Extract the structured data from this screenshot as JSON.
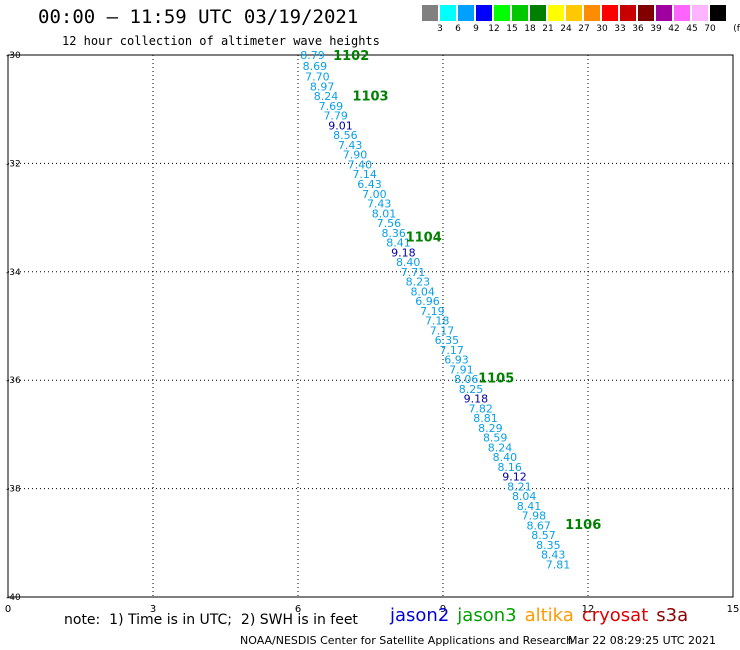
{
  "header": {
    "title": "00:00 – 11:59 UTC 03/19/2021",
    "subtitle": "12 hour collection of altimeter wave heights"
  },
  "legend": {
    "unit": "(ft)",
    "swatches": [
      {
        "color": "#808080",
        "label": "3"
      },
      {
        "color": "#00ffff",
        "label": "6"
      },
      {
        "color": "#00a0ff",
        "label": "9"
      },
      {
        "color": "#0000ff",
        "label": "12"
      },
      {
        "color": "#00ff00",
        "label": "15"
      },
      {
        "color": "#00c800",
        "label": "18"
      },
      {
        "color": "#008000",
        "label": "21"
      },
      {
        "color": "#ffff00",
        "label": "24"
      },
      {
        "color": "#ffc800",
        "label": "27"
      },
      {
        "color": "#ff8c00",
        "label": "30"
      },
      {
        "color": "#ff0000",
        "label": "33"
      },
      {
        "color": "#c80000",
        "label": "36"
      },
      {
        "color": "#800000",
        "label": "39"
      },
      {
        "color": "#a000a0",
        "label": "42"
      },
      {
        "color": "#ff64ff",
        "label": "45"
      },
      {
        "color": "#ffb4ff",
        "label": "70"
      },
      {
        "color": "#000000",
        "label": ""
      }
    ]
  },
  "map": {
    "x_ticks": [
      0,
      3,
      6,
      9,
      12,
      15
    ],
    "x_tick_labels": [
      "0",
      "3",
      "6",
      "9",
      "12",
      "15"
    ],
    "y_ticks": [
      -30,
      -32,
      -34,
      -36,
      -38,
      -40
    ],
    "y_tick_labels": [
      "-30",
      "-32",
      "-34",
      "-36",
      "-38",
      "-40"
    ],
    "xlim": [
      0,
      15
    ],
    "ylim": [
      -40,
      -30
    ],
    "grid": true,
    "colors": {
      "jason3_cyan": "#0aa0e8",
      "jason3_high": "#0000a0",
      "hour_label": "#008000"
    }
  },
  "chart_data": {
    "type": "scatter",
    "title": "12 hour collection of altimeter wave heights",
    "x_label": "",
    "y_label": "",
    "xlim": [
      0,
      15
    ],
    "ylim": [
      -40,
      -30
    ],
    "points": [
      {
        "lon": 6.3,
        "lat": -30.0,
        "value": "8.79"
      },
      {
        "lon": 6.35,
        "lat": -30.2,
        "value": "8.69"
      },
      {
        "lon": 6.4,
        "lat": -30.4,
        "value": "7.70"
      },
      {
        "lon": 6.5,
        "lat": -30.58,
        "value": "8.97"
      },
      {
        "lon": 6.58,
        "lat": -30.76,
        "value": "8.24"
      },
      {
        "lon": 6.68,
        "lat": -30.94,
        "value": "7.69"
      },
      {
        "lon": 6.78,
        "lat": -31.12,
        "value": "7.79"
      },
      {
        "lon": 6.88,
        "lat": -31.3,
        "value": "9.01"
      },
      {
        "lon": 6.98,
        "lat": -31.48,
        "value": "8.56"
      },
      {
        "lon": 7.08,
        "lat": -31.66,
        "value": "7.43"
      },
      {
        "lon": 7.18,
        "lat": -31.84,
        "value": "7.90"
      },
      {
        "lon": 7.28,
        "lat": -32.02,
        "value": "7.40"
      },
      {
        "lon": 7.38,
        "lat": -32.2,
        "value": "7.14"
      },
      {
        "lon": 7.48,
        "lat": -32.38,
        "value": "6.43"
      },
      {
        "lon": 7.58,
        "lat": -32.56,
        "value": "7.00"
      },
      {
        "lon": 7.68,
        "lat": -32.74,
        "value": "7.43"
      },
      {
        "lon": 7.78,
        "lat": -32.92,
        "value": "8.01"
      },
      {
        "lon": 7.88,
        "lat": -33.1,
        "value": "7.56"
      },
      {
        "lon": 7.98,
        "lat": -33.28,
        "value": "8.36"
      },
      {
        "lon": 8.08,
        "lat": -33.46,
        "value": "8.41"
      },
      {
        "lon": 8.18,
        "lat": -33.64,
        "value": "9.18"
      },
      {
        "lon": 8.28,
        "lat": -33.82,
        "value": "8.40"
      },
      {
        "lon": 8.38,
        "lat": -34.0,
        "value": "7.71"
      },
      {
        "lon": 8.48,
        "lat": -34.18,
        "value": "8.23"
      },
      {
        "lon": 8.58,
        "lat": -34.36,
        "value": "8.04"
      },
      {
        "lon": 8.68,
        "lat": -34.54,
        "value": "6.96"
      },
      {
        "lon": 8.78,
        "lat": -34.72,
        "value": "7.19"
      },
      {
        "lon": 8.88,
        "lat": -34.9,
        "value": "7.18"
      },
      {
        "lon": 8.98,
        "lat": -35.08,
        "value": "7.17"
      },
      {
        "lon": 9.08,
        "lat": -35.26,
        "value": "6.35"
      },
      {
        "lon": 9.18,
        "lat": -35.44,
        "value": "7.17"
      },
      {
        "lon": 9.28,
        "lat": -35.62,
        "value": "6.93"
      },
      {
        "lon": 9.38,
        "lat": -35.8,
        "value": "7.91"
      },
      {
        "lon": 9.48,
        "lat": -35.98,
        "value": "8.06"
      },
      {
        "lon": 9.58,
        "lat": -36.16,
        "value": "8.25"
      },
      {
        "lon": 9.68,
        "lat": -36.34,
        "value": "9.18"
      },
      {
        "lon": 9.78,
        "lat": -36.52,
        "value": "7.82"
      },
      {
        "lon": 9.88,
        "lat": -36.7,
        "value": "8.81"
      },
      {
        "lon": 9.98,
        "lat": -36.88,
        "value": "8.29"
      },
      {
        "lon": 10.08,
        "lat": -37.06,
        "value": "8.59"
      },
      {
        "lon": 10.18,
        "lat": -37.24,
        "value": "8.24"
      },
      {
        "lon": 10.28,
        "lat": -37.42,
        "value": "8.40"
      },
      {
        "lon": 10.38,
        "lat": -37.6,
        "value": "8.16"
      },
      {
        "lon": 10.48,
        "lat": -37.78,
        "value": "9.12"
      },
      {
        "lon": 10.58,
        "lat": -37.96,
        "value": "8.21"
      },
      {
        "lon": 10.68,
        "lat": -38.14,
        "value": "8.04"
      },
      {
        "lon": 10.78,
        "lat": -38.32,
        "value": "8.41"
      },
      {
        "lon": 10.88,
        "lat": -38.5,
        "value": "7.98"
      },
      {
        "lon": 10.98,
        "lat": -38.68,
        "value": "8.67"
      },
      {
        "lon": 11.08,
        "lat": -38.86,
        "value": "8.57"
      },
      {
        "lon": 11.18,
        "lat": -39.04,
        "value": "8.35"
      },
      {
        "lon": 11.28,
        "lat": -39.22,
        "value": "8.43"
      },
      {
        "lon": 11.38,
        "lat": -39.4,
        "value": "7.81"
      }
    ],
    "hour_labels": [
      {
        "lon": 7.1,
        "lat": -30.0,
        "label": "1102"
      },
      {
        "lon": 7.5,
        "lat": -30.75,
        "label": "1103"
      },
      {
        "lon": 8.6,
        "lat": -33.35,
        "label": "1104"
      },
      {
        "lon": 10.1,
        "lat": -35.95,
        "label": "1105"
      },
      {
        "lon": 11.9,
        "lat": -38.65,
        "label": "1106"
      }
    ]
  },
  "notes": {
    "note": "note:  1) Time is in UTC;  2) SWH is in feet",
    "satellites": [
      {
        "name": "jason2",
        "color": "#0000d8"
      },
      {
        "name": "jason3",
        "color": "#00a000"
      },
      {
        "name": "altika",
        "color": "#ff9a00"
      },
      {
        "name": "cryosat",
        "color": "#e00000"
      },
      {
        "name": "s3a",
        "color": "#900000"
      }
    ],
    "footer_left": "NOAA/NESDIS Center for Satellite Applications and Research",
    "footer_right": "Mar 22 08:29:25 UTC 2021"
  }
}
